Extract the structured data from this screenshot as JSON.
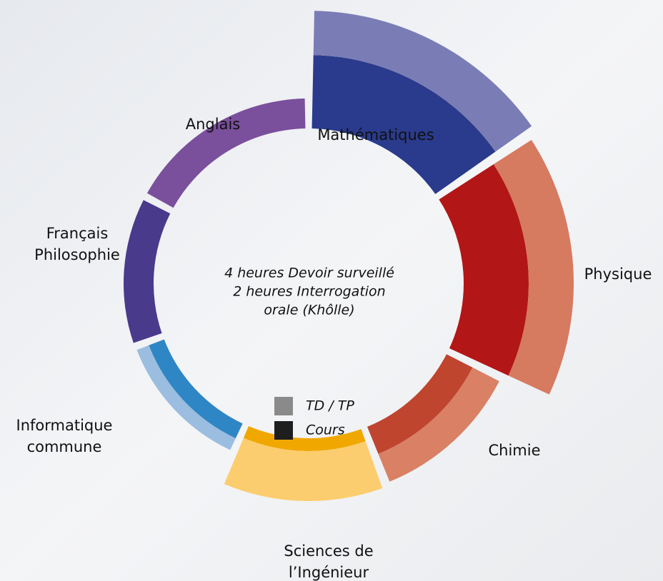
{
  "chart_data": {
    "type": "radial-stacked",
    "center_text": [
      "4 heures Devoir surveillé",
      "2 heures Interrogation",
      "orale (Khôlle)"
    ],
    "categories": [
      [
        "Mathématiques"
      ],
      [
        "Physique"
      ],
      [
        "Chimie"
      ],
      [
        "Sciences de",
        "l’Ingénieur"
      ],
      [
        "Informatique",
        "commune"
      ],
      [
        "Français",
        "Philosophie"
      ],
      [
        "Anglais"
      ]
    ],
    "spans": [
      56,
      60,
      43,
      45,
      46,
      48,
      62
    ],
    "rlim": [
      0,
      165
    ],
    "series": [
      {
        "name": "Cours",
        "color": "#1e1e1e",
        "values": [
          103,
          91,
          41,
          18,
          23,
          42,
          42
        ],
        "colors": [
          "#2a3a8c",
          "#b31616",
          "#c0452f",
          "#f0a800",
          "#2f86c4",
          "#4a3a8c",
          "#7a4f9c"
        ]
      },
      {
        "name": "TD / TP",
        "color": "#8a8a8a",
        "values": [
          62,
          63,
          42,
          70,
          18,
          0,
          0
        ],
        "colors": [
          "#7a7db5",
          "#d67a60",
          "#d98065",
          "#fccd6e",
          "#9bbde0",
          "#8f86c0",
          "#b39bcc"
        ]
      }
    ]
  }
}
